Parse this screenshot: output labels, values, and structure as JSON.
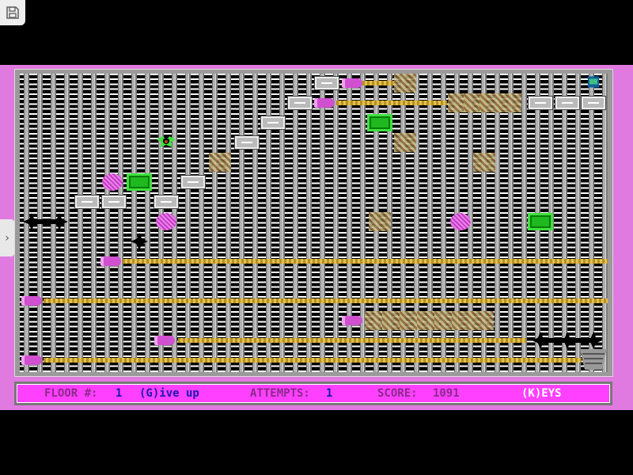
{
  "status": {
    "floor_label": "FLOOR #:",
    "floor": "1",
    "give_up": "(G)ive up",
    "attempts_label": "ATTEMPTS:",
    "attempts": "1",
    "score_label": "SCORE:",
    "score": "1091",
    "keys": "(K)EYS"
  },
  "colors": {
    "border": "#e07ae0",
    "status_bg": "#ff40ff",
    "label": "#8a2a8a",
    "value": "#1a1ab0",
    "keys": "#ffffff"
  },
  "icons": {
    "save": "floppy-disk-icon",
    "sidebar": "chevron-right-icon"
  }
}
